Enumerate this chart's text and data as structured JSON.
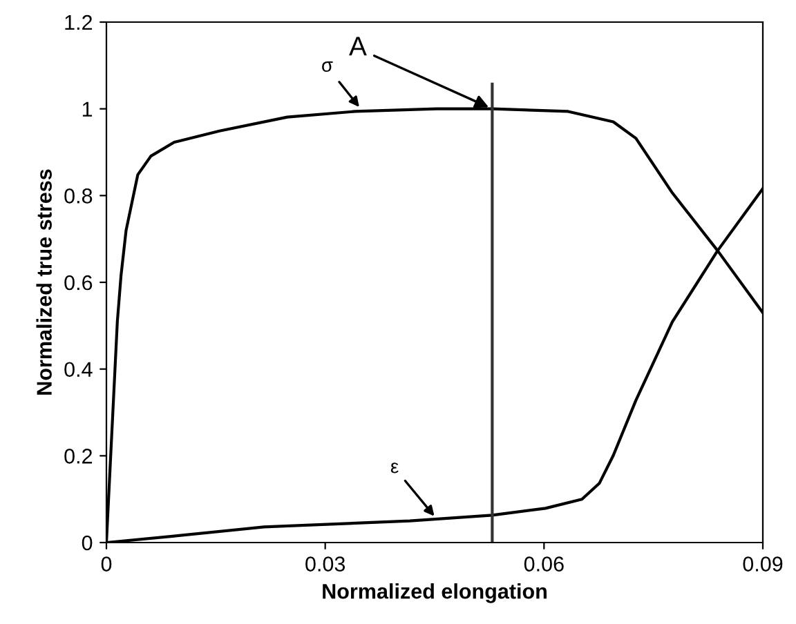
{
  "chart_data": {
    "type": "line",
    "xlabel": "Normalized elongation",
    "ylabel": "Normalized true stress",
    "xlim": [
      0,
      0.09
    ],
    "ylim": [
      0,
      1.2
    ],
    "xticks": [
      0,
      0.03,
      0.06,
      0.09
    ],
    "yticks": [
      0,
      0.2,
      0.4,
      0.6,
      0.8,
      1,
      1.2
    ],
    "grid": false,
    "marker": "none",
    "line_style": "solid",
    "series": [
      {
        "color": "#000000",
        "x": [
          0,
          0.0015,
          0.002,
          0.0027,
          0.0043,
          0.0061,
          0.0093,
          0.0155,
          0.0248,
          0.0341,
          0.0453,
          0.0529,
          0.0633,
          0.0695,
          0.0726,
          0.0776,
          0.0838,
          0.09
        ],
        "values": [
          0,
          0.51,
          0.615,
          0.72,
          0.848,
          0.891,
          0.923,
          0.949,
          0.981,
          0.994,
          1.0,
          1.0,
          0.994,
          0.97,
          0.932,
          0.806,
          0.673,
          0.53
        ]
      },
      {
        "color": "#000000",
        "x": [
          0,
          0.0093,
          0.0216,
          0.0416,
          0.0529,
          0.0602,
          0.0652,
          0.0676,
          0.0695,
          0.0726,
          0.0776,
          0.0838,
          0.09
        ],
        "values": [
          0,
          0.015,
          0.036,
          0.05,
          0.063,
          0.079,
          0.1,
          0.137,
          0.201,
          0.328,
          0.509,
          0.673,
          0.816
        ]
      },
      {
        "color": "#333333",
        "x": [
          0.0529,
          0.0529
        ],
        "values": [
          0,
          1.057
        ]
      }
    ],
    "annotations": [
      {
        "text": "σ",
        "x": 0.035,
        "y": 0.997
      },
      {
        "text": "A",
        "x": 0.0529,
        "y": 1.0
      },
      {
        "text": "ε",
        "x": 0.0453,
        "y": 0.054
      }
    ]
  }
}
